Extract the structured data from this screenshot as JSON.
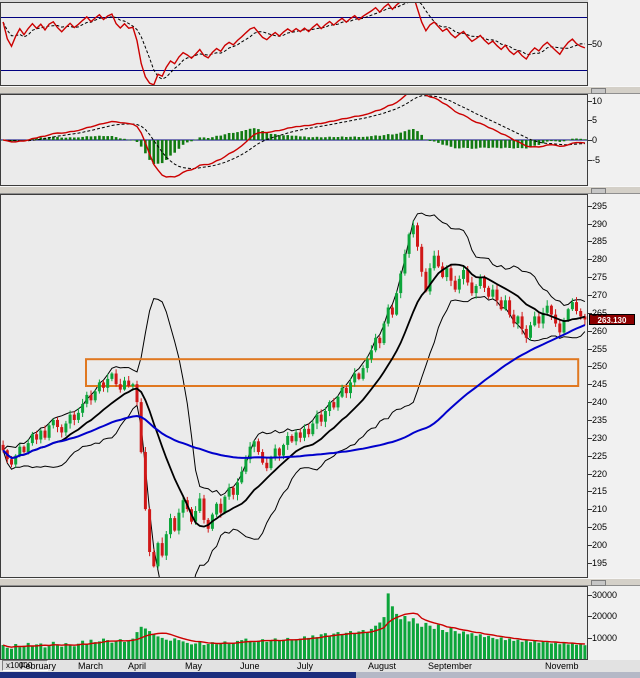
{
  "price_tag": {
    "text": "263.130",
    "value": 263.13,
    "bg": "#8b0000",
    "fg": "#ffffff"
  },
  "chart_data": {
    "type": "multi-panel-stock-chart",
    "x_axis": {
      "months": [
        {
          "label": "February",
          "f": 0.034
        },
        {
          "label": "March",
          "f": 0.133
        },
        {
          "label": "April",
          "f": 0.218
        },
        {
          "label": "May",
          "f": 0.315
        },
        {
          "label": "June",
          "f": 0.408
        },
        {
          "label": "July",
          "f": 0.505
        },
        {
          "label": "August",
          "f": 0.626
        },
        {
          "label": "September",
          "f": 0.728
        },
        {
          "label": "Novemb",
          "f": 0.927
        }
      ]
    },
    "panels": [
      {
        "id": "rsi",
        "type": "line",
        "indicator": "RSI",
        "period": 14,
        "signal_period": 5,
        "ylim": [
          19,
          81
        ],
        "y_ticks": [
          50
        ],
        "ref_lines": [
          70,
          30
        ],
        "line_color": "#cc0000",
        "signal_color": "#000000",
        "ref_color": "#000080"
      },
      {
        "id": "macd",
        "type": "line+histogram",
        "indicator": "MACD",
        "fast": 12,
        "slow": 26,
        "signal_period": 9,
        "ylim": [
          -11.5,
          11.5
        ],
        "y_ticks": [
          10,
          5,
          0,
          -5
        ],
        "hist_color": "#117a11",
        "line_color": "#cc0000",
        "signal_color": "#000000",
        "zero_color": "#000080"
      },
      {
        "id": "price",
        "type": "candlestick",
        "ylim": [
          191,
          298
        ],
        "y_ticks": [
          295,
          290,
          285,
          280,
          275,
          270,
          265,
          260,
          255,
          250,
          245,
          240,
          235,
          230,
          225,
          220,
          215,
          210,
          205,
          200,
          195
        ],
        "up_color": "#0ca53a",
        "down_color": "#d01818",
        "last_price": 263.13,
        "overlays": [
          {
            "type": "bollinger",
            "period": 14,
            "mult": 1.9,
            "color": "#000000"
          },
          {
            "type": "sma",
            "period": 14,
            "color": "#000000"
          },
          {
            "type": "sma",
            "period": 70,
            "color": "#0000cc"
          }
        ],
        "annotation_box": {
          "start_frac": 0.145,
          "end_frac": 0.985,
          "top": 252.0,
          "bottom": 244.5,
          "color": "#e07820"
        },
        "close": [
          226.5,
          224,
          222.5,
          225,
          227.5,
          226,
          228.5,
          231,
          229.5,
          232,
          230,
          233.5,
          235,
          233,
          231.5,
          234,
          236.5,
          235,
          237,
          239.5,
          242,
          240.5,
          243,
          245.5,
          244,
          246.5,
          248,
          245,
          243.5,
          246,
          244.5,
          245,
          240,
          226,
          210,
          198,
          194,
          200.5,
          197,
          203,
          207.5,
          204,
          209,
          212.5,
          210,
          206.5,
          209.5,
          213,
          207,
          204.5,
          208.5,
          211.5,
          209,
          213.5,
          216,
          214,
          217.5,
          220.5,
          224,
          227.5,
          229,
          226,
          223,
          221.5,
          224.5,
          227,
          225,
          228,
          230.5,
          229,
          231.5,
          230,
          232.5,
          231,
          234,
          236.5,
          234.5,
          237.5,
          240,
          238.5,
          241.5,
          244,
          242.5,
          245.5,
          248,
          246.5,
          249.5,
          252,
          254.5,
          258,
          256.5,
          262,
          266.5,
          264.5,
          270.5,
          276,
          281.5,
          287,
          289.5,
          283.5,
          276.5,
          271,
          277.5,
          281,
          278,
          275,
          277.5,
          274,
          271.5,
          274.5,
          277,
          273.5,
          270.5,
          272.5,
          275,
          272,
          269.5,
          271.5,
          268.5,
          266,
          268.5,
          264.5,
          262,
          264,
          260.5,
          258,
          261.5,
          264,
          262,
          265,
          267,
          264.5,
          262,
          259.5,
          263,
          266,
          268,
          265.5,
          264,
          263.13
        ]
      },
      {
        "id": "volume",
        "type": "bar",
        "ylim": [
          0,
          33500
        ],
        "y_ticks": [
          30000,
          20000,
          10000
        ],
        "unit_label": "x10000",
        "bar_color": "#0ca53a",
        "ma_period": 8,
        "ma_color": "#cc0000",
        "values": [
          6500,
          5200,
          4800,
          7000,
          5500,
          6200,
          7500,
          5800,
          6800,
          7200,
          5400,
          6000,
          8000,
          6300,
          5700,
          7400,
          6600,
          5900,
          7100,
          8500,
          7200,
          9000,
          7800,
          8200,
          9500,
          8800,
          7600,
          8400,
          9200,
          7900,
          8600,
          9500,
          12500,
          15000,
          14200,
          13000,
          11500,
          10500,
          9800,
          9000,
          8500,
          9600,
          8800,
          8200,
          7500,
          6800,
          7200,
          8000,
          6500,
          7000,
          7800,
          6900,
          7400,
          8200,
          7100,
          7600,
          8400,
          8800,
          9500,
          8200,
          7800,
          8500,
          9200,
          8000,
          8800,
          9600,
          8400,
          9000,
          9800,
          8600,
          9200,
          9500,
          10500,
          9800,
          11000,
          10200,
          11500,
          12000,
          10800,
          11800,
          12500,
          11200,
          12200,
          13000,
          11800,
          12800,
          13500,
          12400,
          14000,
          15500,
          17000,
          19500,
          30500,
          24500,
          21000,
          18500,
          20000,
          17500,
          19000,
          16500,
          15000,
          16800,
          15500,
          14000,
          16000,
          13500,
          12500,
          14500,
          13000,
          11800,
          12800,
          11500,
          12000,
          10800,
          11500,
          10200,
          10800,
          9800,
          9200,
          10000,
          8800,
          9500,
          8400,
          9000,
          8000,
          8600,
          7800,
          8400,
          7600,
          8200,
          7800,
          7200,
          7600,
          6900,
          7400,
          6800,
          7200,
          6600,
          7000,
          6400
        ]
      }
    ]
  }
}
